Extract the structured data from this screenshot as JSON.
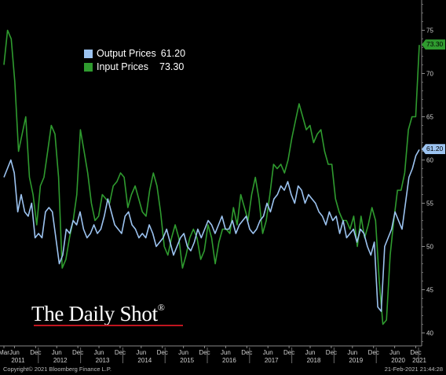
{
  "chart_data": {
    "type": "line",
    "x_start": "2011-03",
    "x_end": "2021-01",
    "frequency": "monthly",
    "ylim": [
      38.5,
      78.5
    ],
    "yticks": [
      40,
      45,
      50,
      55,
      60,
      65,
      70,
      75
    ],
    "xticks": [
      {
        "label": "Mar",
        "date": "2011-03"
      },
      {
        "label": "Jun",
        "date": "2011-06"
      },
      {
        "label": "Dec",
        "date": "2011-12"
      },
      {
        "label": "Jun",
        "date": "2012-06"
      },
      {
        "label": "Dec",
        "date": "2012-12"
      },
      {
        "label": "Jun",
        "date": "2013-06"
      },
      {
        "label": "Dec",
        "date": "2013-12"
      },
      {
        "label": "Jun",
        "date": "2014-06"
      },
      {
        "label": "Dec",
        "date": "2014-12"
      },
      {
        "label": "Jun",
        "date": "2015-06"
      },
      {
        "label": "Dec",
        "date": "2015-12"
      },
      {
        "label": "Jun",
        "date": "2016-06"
      },
      {
        "label": "Dec",
        "date": "2016-12"
      },
      {
        "label": "Jun",
        "date": "2017-06"
      },
      {
        "label": "Dec",
        "date": "2017-12"
      },
      {
        "label": "Jun",
        "date": "2018-06"
      },
      {
        "label": "Dec",
        "date": "2018-12"
      },
      {
        "label": "Jun",
        "date": "2019-06"
      },
      {
        "label": "Dec",
        "date": "2019-12"
      },
      {
        "label": "Jun",
        "date": "2020-06"
      },
      {
        "label": "Dec",
        "date": "2020-12"
      }
    ],
    "year_labels": [
      {
        "label": "2011",
        "date": "2011-07"
      },
      {
        "label": "2012",
        "date": "2012-07"
      },
      {
        "label": "2013",
        "date": "2013-07"
      },
      {
        "label": "2014",
        "date": "2014-07"
      },
      {
        "label": "2015",
        "date": "2015-07"
      },
      {
        "label": "2016",
        "date": "2016-07"
      },
      {
        "label": "2017",
        "date": "2017-07"
      },
      {
        "label": "2018",
        "date": "2018-07"
      },
      {
        "label": "2019",
        "date": "2019-07"
      },
      {
        "label": "2020",
        "date": "2020-07"
      },
      {
        "label": "2021",
        "date": "2021-01"
      }
    ],
    "grid": false,
    "legend_position": "top-left",
    "series": [
      {
        "name": "Output Prices",
        "color": "#9cc3f0",
        "last": "61.20",
        "values": [
          58,
          59,
          60,
          58.5,
          54,
          56,
          54,
          53.5,
          55,
          51,
          51.5,
          51,
          54,
          54.5,
          54,
          51,
          48,
          49,
          52,
          51.5,
          53,
          52.5,
          54,
          52,
          51,
          51.5,
          52.5,
          51.5,
          52,
          53.5,
          55.5,
          54,
          52.5,
          52,
          51.5,
          53.5,
          54,
          52.5,
          52,
          51,
          51.5,
          51,
          52.5,
          51.5,
          50,
          50.5,
          51,
          52,
          50.5,
          49,
          50,
          51,
          51.5,
          50,
          49.5,
          50.5,
          52,
          51,
          52,
          53,
          52.5,
          51.5,
          52.5,
          53.5,
          52,
          52,
          53,
          51.5,
          52.5,
          53,
          53.5,
          52,
          51.5,
          52,
          53,
          53.5,
          55,
          54,
          55.5,
          56,
          57,
          56.5,
          57.5,
          56,
          55,
          57,
          56.5,
          55,
          56,
          55.5,
          55,
          54,
          53.5,
          52.5,
          54,
          53,
          53.5,
          51.5,
          53,
          51,
          51.5,
          52,
          50.5,
          52,
          51.5,
          50,
          49,
          50.5,
          43,
          42.5,
          50,
          51,
          52,
          54,
          53,
          52,
          55,
          58,
          59,
          60.5,
          61.2
        ]
      },
      {
        "name": "Input Prices",
        "color": "#2f9b2f",
        "last": "73.30",
        "values": [
          71,
          75,
          74,
          69,
          61,
          63,
          65,
          58,
          56,
          52.5,
          57,
          58,
          61,
          64,
          63,
          58,
          47.5,
          48.5,
          51,
          53,
          56,
          63.5,
          61,
          58.5,
          55,
          53,
          53.5,
          56,
          55.5,
          55,
          57,
          57.5,
          58.5,
          58,
          54.5,
          56,
          57,
          55.5,
          54,
          53.5,
          56.5,
          58.5,
          57,
          54,
          50,
          49,
          51,
          52.5,
          51,
          47.5,
          49,
          51,
          52,
          51,
          48.5,
          49.5,
          52.5,
          51,
          48,
          50.5,
          52,
          52,
          51.5,
          54.5,
          52.5,
          56,
          54.5,
          53,
          56,
          58,
          55.5,
          51.5,
          53,
          56,
          59.5,
          59,
          59.5,
          58.5,
          60,
          62.5,
          64.5,
          66.5,
          65,
          63.5,
          64,
          62,
          63,
          63.5,
          61,
          59.5,
          59.5,
          55.5,
          54,
          53,
          53,
          52,
          53.5,
          50,
          53.5,
          51,
          52.5,
          54.5,
          53,
          46,
          41,
          41.5,
          49,
          53,
          56.5,
          56.5,
          58.5,
          63.5,
          65,
          65,
          73.3
        ]
      }
    ]
  },
  "legend": {
    "items": [
      {
        "name": "Output Prices",
        "value": "61.20",
        "color": "#9cc3f0"
      },
      {
        "name": "Input Prices",
        "value": "73.30",
        "color": "#2f9b2f"
      }
    ]
  },
  "badges": {
    "input": "73.30",
    "output": "61.20"
  },
  "branding": {
    "logo_text": "The Daily Shot",
    "logo_mark": "®"
  },
  "footer": {
    "copyright": "Copyright© 2021 Bloomberg Finance L.P.",
    "timestamp": "21-Feb-2021 21:44:28"
  }
}
